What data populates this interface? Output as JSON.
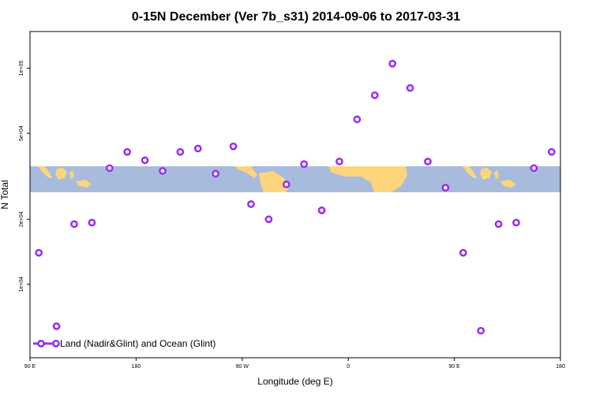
{
  "chart_data": {
    "type": "scatter",
    "title": "0-15N December (Ver 7b_s31)   2014-09-06 to 2017-03-31",
    "xlabel": "Longitude (deg E)",
    "ylabel": "N Total",
    "x_ticks": [
      {
        "value": 90,
        "label": "90 E"
      },
      {
        "value": 180,
        "label": "180"
      },
      {
        "value": 270,
        "label": "90 W"
      },
      {
        "value": 360,
        "label": "0"
      },
      {
        "value": 450,
        "label": "90 E"
      },
      {
        "value": 540,
        "label": "180"
      }
    ],
    "y_scale": "log",
    "y_ticks": [
      {
        "value": 10000,
        "label": "1e+04"
      },
      {
        "value": 20000,
        "label": "2e+04"
      },
      {
        "value": 50000,
        "label": "5e+04"
      },
      {
        "value": 100000,
        "label": "1e+05"
      }
    ],
    "xlim": [
      90,
      540
    ],
    "ylim": [
      6400,
      125000
    ],
    "grid": false,
    "legend_position": "bottom-left",
    "series": [
      {
        "name": "Land (Nadir&Glint) and Ocean (Glint)",
        "color": "#9b30f0",
        "marker": "open-circle",
        "x": [
          97.5,
          112.5,
          127.5,
          142.5,
          157.5,
          172.5,
          187.5,
          202.5,
          217.5,
          232.5,
          247.5,
          262.5,
          277.5,
          292.5,
          307.5,
          322.5,
          337.5,
          352.5,
          367.5,
          382.5,
          397.5,
          412.5,
          427.5,
          442.5,
          457.5,
          472.5,
          487.5,
          502.5,
          517.5,
          532.5
        ],
        "y": [
          14000,
          6400,
          19000,
          19300,
          34500,
          41000,
          37500,
          33500,
          41000,
          42500,
          32500,
          43500,
          23500,
          20000,
          29000,
          36000,
          22000,
          37000,
          58000,
          75000,
          105000,
          81000,
          37000,
          28000,
          14000,
          6100,
          19000,
          19300,
          34500,
          41000
        ]
      }
    ],
    "background_map": {
      "lat_band": "0-15N",
      "ocean_color": "#a7bcdc",
      "land_color": "#fdd57c"
    }
  }
}
